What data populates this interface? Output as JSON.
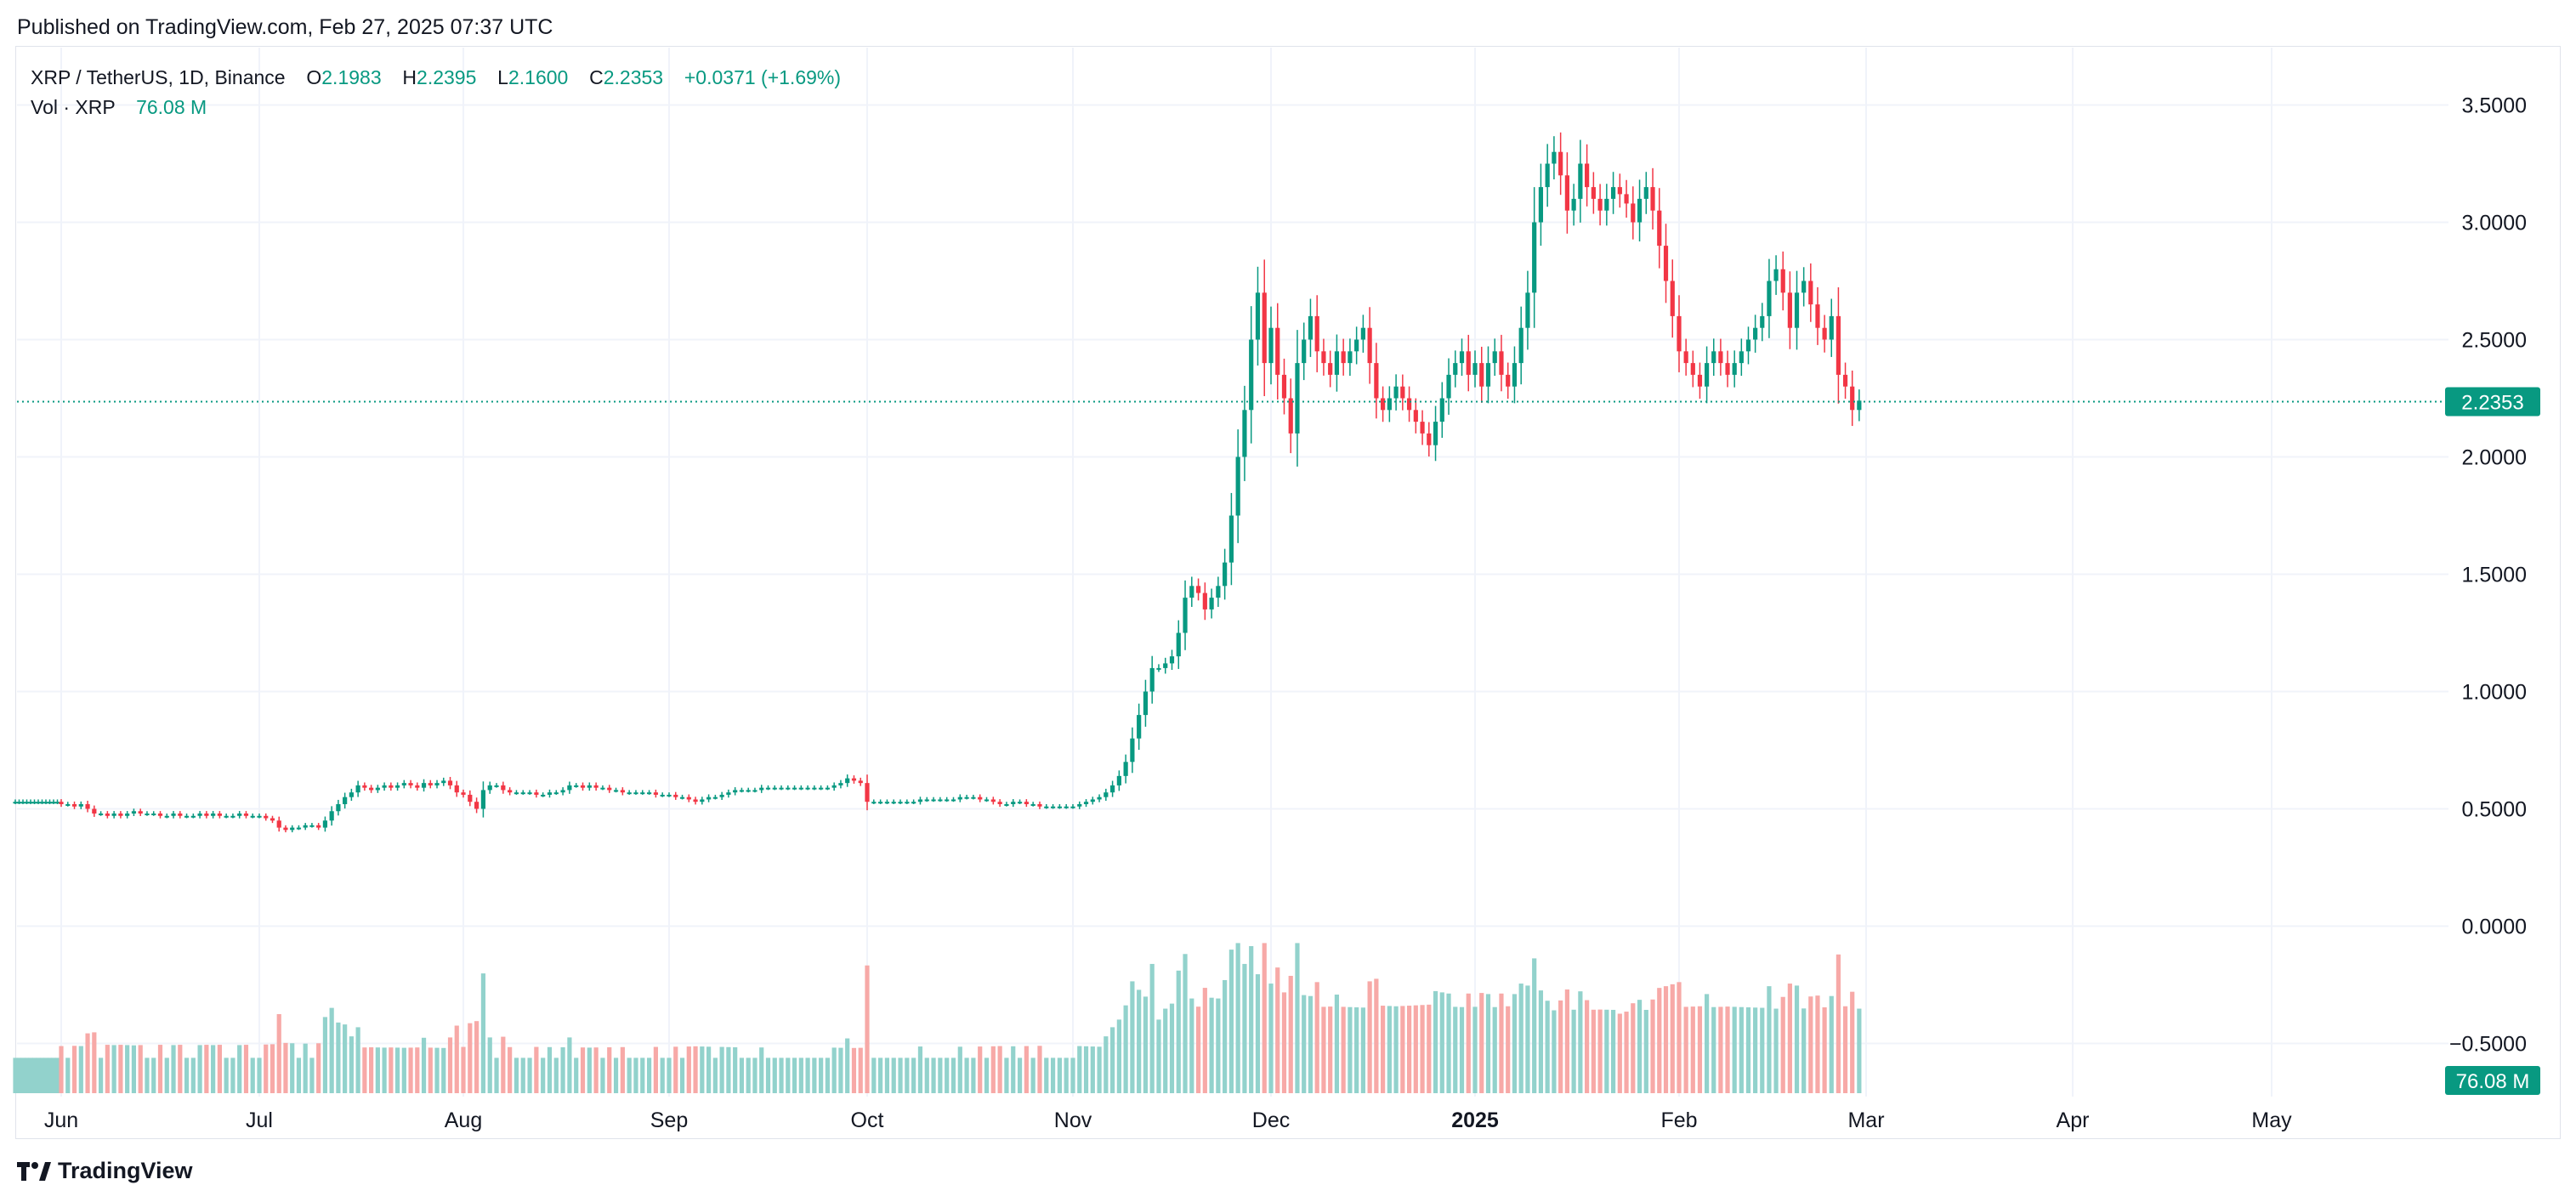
{
  "header": {
    "published": "Published on TradingView.com, Feb 27, 2025 07:37 UTC"
  },
  "legend": {
    "symbol": "XRP / TetherUS, 1D, Binance",
    "o_label": "O",
    "o": "2.1983",
    "h_label": "H",
    "h": "2.2395",
    "l_label": "L",
    "l": "2.1600",
    "c_label": "C",
    "c": "2.2353",
    "change": "+0.0371 (+1.69%)",
    "vol_label": "Vol · XRP",
    "vol_value": "76.08 M"
  },
  "price_badge": "2.2353",
  "volume_badge": "76.08 M",
  "footer": {
    "brand": "TradingView"
  },
  "colors": {
    "up": "#089981",
    "down": "#f23645",
    "up_vol": "#92d2cc",
    "down_vol": "#f7a9a7",
    "grid": "#f0f3fa",
    "axis_text": "#131722",
    "badge": "#089981"
  },
  "chart_data": {
    "type": "candlestick",
    "title": "XRP / TetherUS, 1D, Binance",
    "y_axis_ticks": [
      "3.5000",
      "3.0000",
      "2.5000",
      "2.0000",
      "1.5000",
      "1.0000",
      "0.5000",
      "0.0000",
      "−0.5000"
    ],
    "y_tick_values": [
      3.5,
      3.0,
      2.5,
      2.0,
      1.5,
      1.0,
      0.5,
      0.0,
      -0.5
    ],
    "ylim": [
      -0.7,
      3.7
    ],
    "x_axis_ticks": [
      {
        "label": "Jun",
        "month": 0
      },
      {
        "label": "Jul",
        "month": 1
      },
      {
        "label": "Aug",
        "month": 2
      },
      {
        "label": "Sep",
        "month": 3
      },
      {
        "label": "Oct",
        "month": 4
      },
      {
        "label": "Nov",
        "month": 5
      },
      {
        "label": "Dec",
        "month": 6
      },
      {
        "label": "2025",
        "month": 7,
        "bold": true
      },
      {
        "label": "Feb",
        "month": 8
      },
      {
        "label": "Mar",
        "month": 9
      },
      {
        "label": "Apr",
        "month": 10
      },
      {
        "label": "May",
        "month": 11
      }
    ],
    "last_close": 2.2353,
    "grid": true,
    "series": [
      {
        "name": "XRP / TetherUS",
        "kind": "candles",
        "segments": [
          {
            "from": "Jun",
            "to": "Jul",
            "close": [
              0.52,
              0.52,
              0.51,
              0.52,
              0.5,
              0.48,
              0.48,
              0.47,
              0.48,
              0.47,
              0.48,
              0.49,
              0.48,
              0.48,
              0.48,
              0.47,
              0.47,
              0.48,
              0.47,
              0.47,
              0.47,
              0.48,
              0.47,
              0.48,
              0.47,
              0.47,
              0.47,
              0.48,
              0.47,
              0.47
            ]
          },
          {
            "from": "Jul",
            "to": "Aug",
            "close": [
              0.47,
              0.46,
              0.45,
              0.42,
              0.41,
              0.42,
              0.42,
              0.43,
              0.43,
              0.42,
              0.45,
              0.49,
              0.52,
              0.55,
              0.57,
              0.6,
              0.59,
              0.58,
              0.59,
              0.6,
              0.59,
              0.6,
              0.61,
              0.6,
              0.59,
              0.61,
              0.6,
              0.61,
              0.62,
              0.6,
              0.57
            ]
          },
          {
            "from": "Aug",
            "to": "Sep",
            "close": [
              0.56,
              0.53,
              0.5,
              0.58,
              0.6,
              0.6,
              0.58,
              0.57,
              0.57,
              0.57,
              0.57,
              0.56,
              0.56,
              0.57,
              0.57,
              0.58,
              0.6,
              0.6,
              0.59,
              0.6,
              0.59,
              0.59,
              0.58,
              0.58,
              0.57,
              0.57,
              0.57,
              0.57,
              0.57,
              0.56,
              0.56
            ]
          },
          {
            "from": "Sep",
            "to": "Oct",
            "close": [
              0.56,
              0.55,
              0.55,
              0.54,
              0.53,
              0.54,
              0.55,
              0.55,
              0.56,
              0.57,
              0.58,
              0.58,
              0.58,
              0.58,
              0.59,
              0.59,
              0.59,
              0.59,
              0.59,
              0.59,
              0.59,
              0.59,
              0.59,
              0.59,
              0.59,
              0.6,
              0.61,
              0.63,
              0.62,
              0.61
            ]
          },
          {
            "from": "Oct",
            "to": "Nov",
            "close": [
              0.53,
              0.53,
              0.53,
              0.53,
              0.53,
              0.53,
              0.53,
              0.53,
              0.54,
              0.54,
              0.54,
              0.54,
              0.54,
              0.54,
              0.55,
              0.55,
              0.55,
              0.54,
              0.54,
              0.53,
              0.52,
              0.52,
              0.53,
              0.53,
              0.52,
              0.52,
              0.51,
              0.51,
              0.51,
              0.51,
              0.51
            ]
          },
          {
            "from": "Nov",
            "to": "Dec",
            "close": [
              0.51,
              0.52,
              0.53,
              0.54,
              0.55,
              0.57,
              0.6,
              0.64,
              0.7,
              0.8,
              0.9,
              1.0,
              1.1,
              1.1,
              1.12,
              1.15,
              1.25,
              1.4,
              1.45,
              1.42,
              1.35,
              1.4,
              1.45,
              1.55,
              1.75,
              2.0,
              2.2,
              2.5,
              2.7,
              2.4
            ]
          },
          {
            "from": "Dec",
            "to": "2025",
            "close": [
              2.55,
              2.35,
              2.25,
              2.1,
              2.4,
              2.5,
              2.6,
              2.45,
              2.4,
              2.35,
              2.45,
              2.4,
              2.45,
              2.5,
              2.55,
              2.4,
              2.25,
              2.2,
              2.25,
              2.3,
              2.25,
              2.2,
              2.15,
              2.1,
              2.05,
              2.15,
              2.25,
              2.35,
              2.4,
              2.45,
              2.35
            ]
          },
          {
            "from": "2025",
            "to": "Feb",
            "close": [
              2.4,
              2.3,
              2.4,
              2.45,
              2.35,
              2.3,
              2.4,
              2.55,
              2.7,
              3.0,
              3.15,
              3.25,
              3.3,
              3.2,
              3.05,
              3.1,
              3.25,
              3.15,
              3.1,
              3.05,
              3.1,
              3.15,
              3.12,
              3.08,
              3.0,
              3.1,
              3.15,
              3.05,
              2.9,
              2.75,
              2.6
            ]
          },
          {
            "from": "Feb",
            "to": "Mar",
            "close": [
              2.45,
              2.4,
              2.35,
              2.3,
              2.4,
              2.45,
              2.4,
              2.35,
              2.4,
              2.45,
              2.5,
              2.55,
              2.6,
              2.75,
              2.8,
              2.7,
              2.55,
              2.7,
              2.75,
              2.65,
              2.55,
              2.5,
              2.6,
              2.35,
              2.3,
              2.2,
              2.24
            ]
          }
        ]
      },
      {
        "name": "Vol · XRP",
        "kind": "volume",
        "note": "volume histogram shown in lower pane; peaks in mid-Nov, early Dec and early Feb"
      }
    ]
  }
}
